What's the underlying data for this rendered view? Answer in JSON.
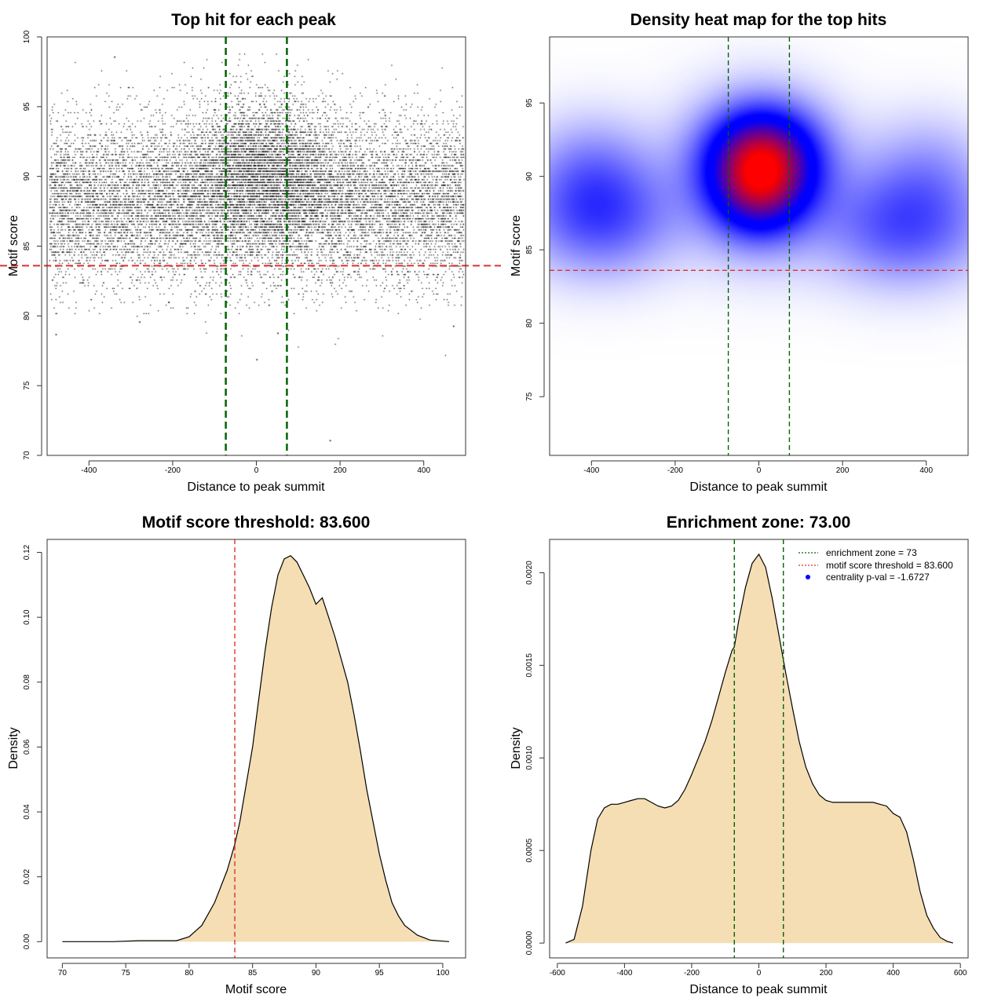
{
  "chart_data": [
    {
      "id": "scatter",
      "type": "scatter",
      "title": "Top hit for each peak",
      "xlabel": "Distance to peak summit",
      "ylabel": "Motif score",
      "xlim": [
        -500,
        500
      ],
      "ylim": [
        70,
        100
      ],
      "xticks": [
        -400,
        -200,
        0,
        200,
        400
      ],
      "yticks": [
        70,
        75,
        80,
        85,
        90,
        95,
        100
      ],
      "points": {
        "count_approx": 15000,
        "x_range": [
          -495,
          495
        ],
        "background": {
          "y_mean": 88.2,
          "y_sd": 3.0
        },
        "central_cluster": {
          "x_center": 20,
          "x_sd": 95,
          "y_mean": 90.8,
          "y_sd": 2.6
        },
        "outliers": [
          [
            -480,
            78.7
          ],
          [
            -280,
            79.6
          ],
          [
            0,
            76.9
          ],
          [
            50,
            78.8
          ],
          [
            175,
            71.1
          ],
          [
            470,
            79.3
          ],
          [
            -340,
            98.6
          ]
        ]
      },
      "vlines": {
        "values": [
          -73,
          73
        ],
        "color": "#006400",
        "style": "dashed"
      },
      "hline": {
        "value": 83.6,
        "color": "#e03030",
        "style": "dashed"
      }
    },
    {
      "id": "heatmap",
      "type": "heatmap",
      "title": "Density heat map for the top hits",
      "xlabel": "Distance to peak summit",
      "ylabel": "Motif score",
      "xlim": [
        -500,
        500
      ],
      "ylim": [
        71,
        99.5
      ],
      "xticks": [
        -400,
        -200,
        0,
        200,
        400
      ],
      "yticks": [
        75,
        80,
        85,
        90,
        95
      ],
      "colors": [
        "#ffffff",
        "#0000ff",
        "#ff0000"
      ],
      "density_components": [
        {
          "x": 10,
          "y": 91.3,
          "sx": 85,
          "sy": 2.2,
          "weight": 1.0
        },
        {
          "x": 0,
          "y": 88.8,
          "sx": 70,
          "sy": 2.0,
          "weight": 0.55
        },
        {
          "x": 0,
          "y": 90.0,
          "sx": 120,
          "sy": 3.3,
          "weight": 0.5
        },
        {
          "x": -380,
          "y": 87.2,
          "sx": 120,
          "sy": 2.6,
          "weight": 0.42
        },
        {
          "x": 350,
          "y": 86.6,
          "sx": 130,
          "sy": 2.6,
          "weight": 0.42
        },
        {
          "x": -400,
          "y": 90.5,
          "sx": 100,
          "sy": 2.5,
          "weight": 0.22
        },
        {
          "x": 400,
          "y": 90.5,
          "sx": 100,
          "sy": 2.5,
          "weight": 0.18
        }
      ],
      "vlines": {
        "values": [
          -73,
          73
        ],
        "color": "#006400",
        "style": "dashed"
      },
      "hline": {
        "value": 83.6,
        "color": "#e03030",
        "style": "dashed"
      }
    },
    {
      "id": "score_density",
      "type": "area",
      "title": "Motif score threshold: 83.600",
      "xlabel": "Motif score",
      "ylabel": "Density",
      "xlim": [
        68.8,
        101.8
      ],
      "ylim": [
        -0.005,
        0.124
      ],
      "xticks": [
        70,
        75,
        80,
        85,
        90,
        95,
        100
      ],
      "yticks": [
        0.0,
        0.02,
        0.04,
        0.06,
        0.08,
        0.1,
        0.12
      ],
      "ytick_labels": [
        "0.00",
        "0.02",
        "0.04",
        "0.06",
        "0.08",
        "0.10",
        "0.12"
      ],
      "fill": "#f5deb3",
      "curve": {
        "x": [
          70,
          72,
          74,
          76,
          78,
          79,
          80,
          81,
          82,
          83,
          83.6,
          84,
          85,
          85.5,
          86,
          86.5,
          87,
          87.5,
          88,
          88.5,
          89,
          89.5,
          90,
          90.5,
          91,
          91.5,
          92,
          92.5,
          93,
          93.5,
          94,
          94.5,
          95,
          95.5,
          96,
          96.5,
          97,
          98,
          99,
          100.5
        ],
        "y": [
          0.0,
          0.0,
          0.0,
          0.0003,
          0.0003,
          0.0003,
          0.0015,
          0.005,
          0.012,
          0.022,
          0.03,
          0.037,
          0.06,
          0.075,
          0.09,
          0.103,
          0.113,
          0.118,
          0.119,
          0.117,
          0.113,
          0.109,
          0.104,
          0.106,
          0.1,
          0.094,
          0.087,
          0.08,
          0.07,
          0.059,
          0.047,
          0.037,
          0.027,
          0.019,
          0.012,
          0.008,
          0.005,
          0.002,
          0.0005,
          0.0
        ]
      },
      "vline": {
        "value": 83.6,
        "color": "#e03030",
        "style": "dashed"
      }
    },
    {
      "id": "distance_density",
      "type": "area",
      "title": "Enrichment zone: 73.00",
      "xlabel": "Distance to peak summit",
      "ylabel": "Density",
      "xlim": [
        -623,
        623
      ],
      "ylim": [
        -8e-05,
        0.00218
      ],
      "xticks": [
        -600,
        -400,
        -200,
        0,
        200,
        400,
        600
      ],
      "yticks": [
        0.0,
        0.0005,
        0.001,
        0.0015,
        0.002
      ],
      "ytick_labels": [
        "0.0000",
        "0.0005",
        "0.0010",
        "0.0015",
        "0.0020"
      ],
      "fill": "#f5deb3",
      "curve": {
        "x": [
          -575,
          -550,
          -525,
          -500,
          -480,
          -460,
          -440,
          -420,
          -400,
          -380,
          -360,
          -340,
          -320,
          -300,
          -280,
          -260,
          -240,
          -220,
          -200,
          -180,
          -160,
          -140,
          -120,
          -100,
          -80,
          -73,
          -60,
          -40,
          -20,
          0,
          20,
          40,
          60,
          73,
          80,
          100,
          120,
          140,
          160,
          180,
          200,
          220,
          240,
          260,
          280,
          300,
          320,
          340,
          360,
          380,
          400,
          420,
          440,
          460,
          480,
          500,
          520,
          540,
          560,
          578
        ],
        "y": [
          0.0,
          2e-05,
          0.0002,
          0.0005,
          0.00067,
          0.00073,
          0.00075,
          0.00075,
          0.00076,
          0.00077,
          0.00078,
          0.00078,
          0.00076,
          0.00074,
          0.00073,
          0.00074,
          0.00077,
          0.00083,
          0.00091,
          0.001,
          0.00109,
          0.0012,
          0.00133,
          0.00146,
          0.00158,
          0.0016,
          0.00174,
          0.00192,
          0.00205,
          0.0021,
          0.00203,
          0.00186,
          0.00166,
          0.00153,
          0.00146,
          0.00127,
          0.00109,
          0.00095,
          0.00086,
          0.0008,
          0.00077,
          0.00076,
          0.00076,
          0.00076,
          0.00076,
          0.00076,
          0.00076,
          0.00076,
          0.00075,
          0.00074,
          0.0007,
          0.00068,
          0.0006,
          0.00045,
          0.00028,
          0.00015,
          8e-05,
          3e-05,
          1e-05,
          0.0
        ]
      },
      "vlines": {
        "values": [
          -73,
          73
        ],
        "color": "#006400",
        "style": "dashed"
      },
      "legend": {
        "position": "top-right",
        "items": [
          {
            "label": "enrichment zone = 73",
            "color": "#006400",
            "symbol": "dotted-line"
          },
          {
            "label": "motif score threshold = 83.600",
            "color": "#e03030",
            "symbol": "dotted-line"
          },
          {
            "label": "centrality p-val = -1.6727",
            "color": "#0000ff",
            "symbol": "dot"
          }
        ]
      }
    }
  ]
}
